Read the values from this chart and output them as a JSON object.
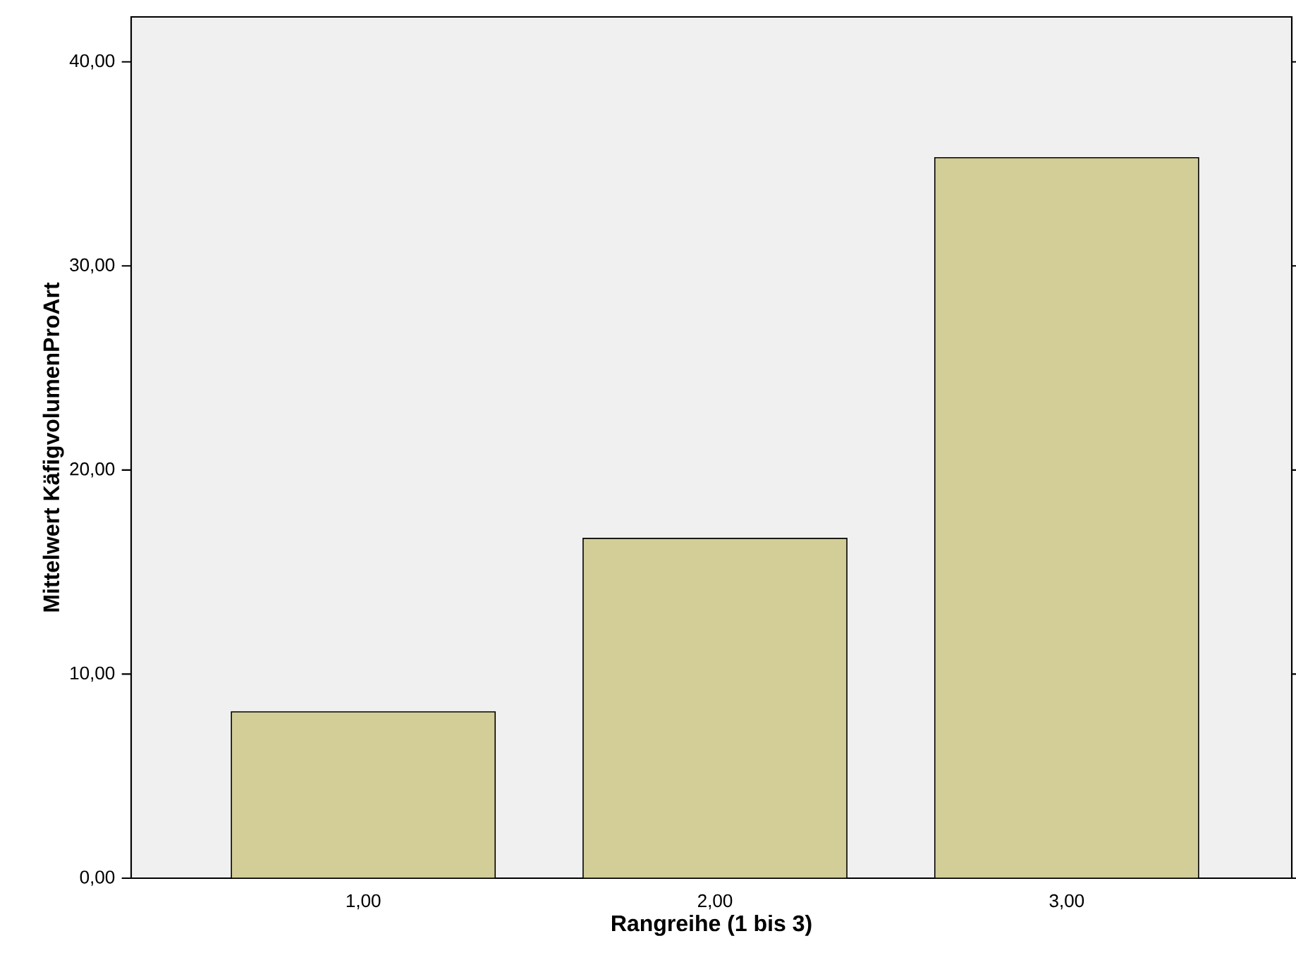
{
  "chart_data": {
    "type": "bar",
    "xlabel": "Rangreihe (1 bis 3)",
    "ylabel": "Mittelwert KäfigvolumenProArt",
    "categories": [
      "1,00",
      "2,00",
      "3,00"
    ],
    "values": [
      8.15,
      16.65,
      35.3
    ],
    "color": "#d3ce97",
    "ylim": [
      0,
      42.2
    ],
    "yticks": [
      {
        "value": 0,
        "label": "0,00"
      },
      {
        "value": 10,
        "label": "10,00"
      },
      {
        "value": 20,
        "label": "20,00"
      },
      {
        "value": 30,
        "label": "30,00"
      },
      {
        "value": 40,
        "label": "40,00"
      }
    ],
    "grid": false
  }
}
